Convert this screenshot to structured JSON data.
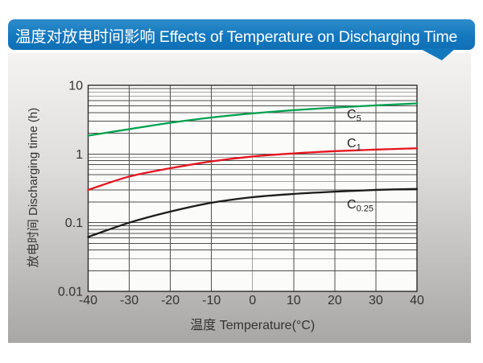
{
  "header": {
    "title": "温度对放电时间影响 Effects of Temperature on Discharging Time"
  },
  "colors": {
    "banner_blue": "#1478be",
    "panel_top": "#f4f3f1",
    "panel_bottom": "#a9a7a5",
    "plot_bg": "#fbfbfa",
    "grid_line": "#4f4f4f",
    "plot_border": "#2b2b2b",
    "tick_text": "#333333",
    "series_c5": "#00A14E",
    "series_c1": "#E5151F",
    "series_c025": "#1C1C1C"
  },
  "chart_data": {
    "type": "line",
    "title": "温度对放电时间影响 Effects of Temperature on Discharging Time",
    "xlabel": "温度  Temperature(°C)",
    "ylabel": "放电时间 Discharging time (h)",
    "x_scale": "linear",
    "y_scale": "log",
    "xlim": [
      -40,
      40
    ],
    "ylim": [
      0.01,
      10
    ],
    "grid": true,
    "legend_position": "inline-labels-on-plot",
    "x_ticks": {
      "values": [
        -40,
        -30,
        -20,
        -10,
        0,
        10,
        20,
        30,
        40
      ],
      "labels": [
        "-40",
        "-30",
        "-20",
        "-10",
        "0",
        "10",
        "20",
        "30",
        "40"
      ]
    },
    "y_ticks": {
      "values": [
        10,
        1,
        0.1,
        0.01
      ],
      "labels": [
        "10",
        "1",
        "0.1",
        "0.01"
      ]
    },
    "x": [
      -40,
      -30,
      -20,
      -10,
      0,
      10,
      20,
      30,
      40
    ],
    "series": [
      {
        "name": "C5",
        "label_main": "C",
        "label_sub": "5",
        "color": "#00A14E",
        "values": [
          1.85,
          2.3,
          2.85,
          3.4,
          3.9,
          4.35,
          4.75,
          5.1,
          5.45
        ]
      },
      {
        "name": "C1",
        "label_main": "C",
        "label_sub": "1",
        "color": "#E5151F",
        "values": [
          0.3,
          0.47,
          0.62,
          0.78,
          0.92,
          1.02,
          1.1,
          1.16,
          1.21
        ]
      },
      {
        "name": "C0.25",
        "label_main": "C",
        "label_sub": "0.25",
        "color": "#1C1C1C",
        "values": [
          0.062,
          0.1,
          0.145,
          0.195,
          0.235,
          0.262,
          0.283,
          0.3,
          0.31
        ]
      }
    ]
  }
}
